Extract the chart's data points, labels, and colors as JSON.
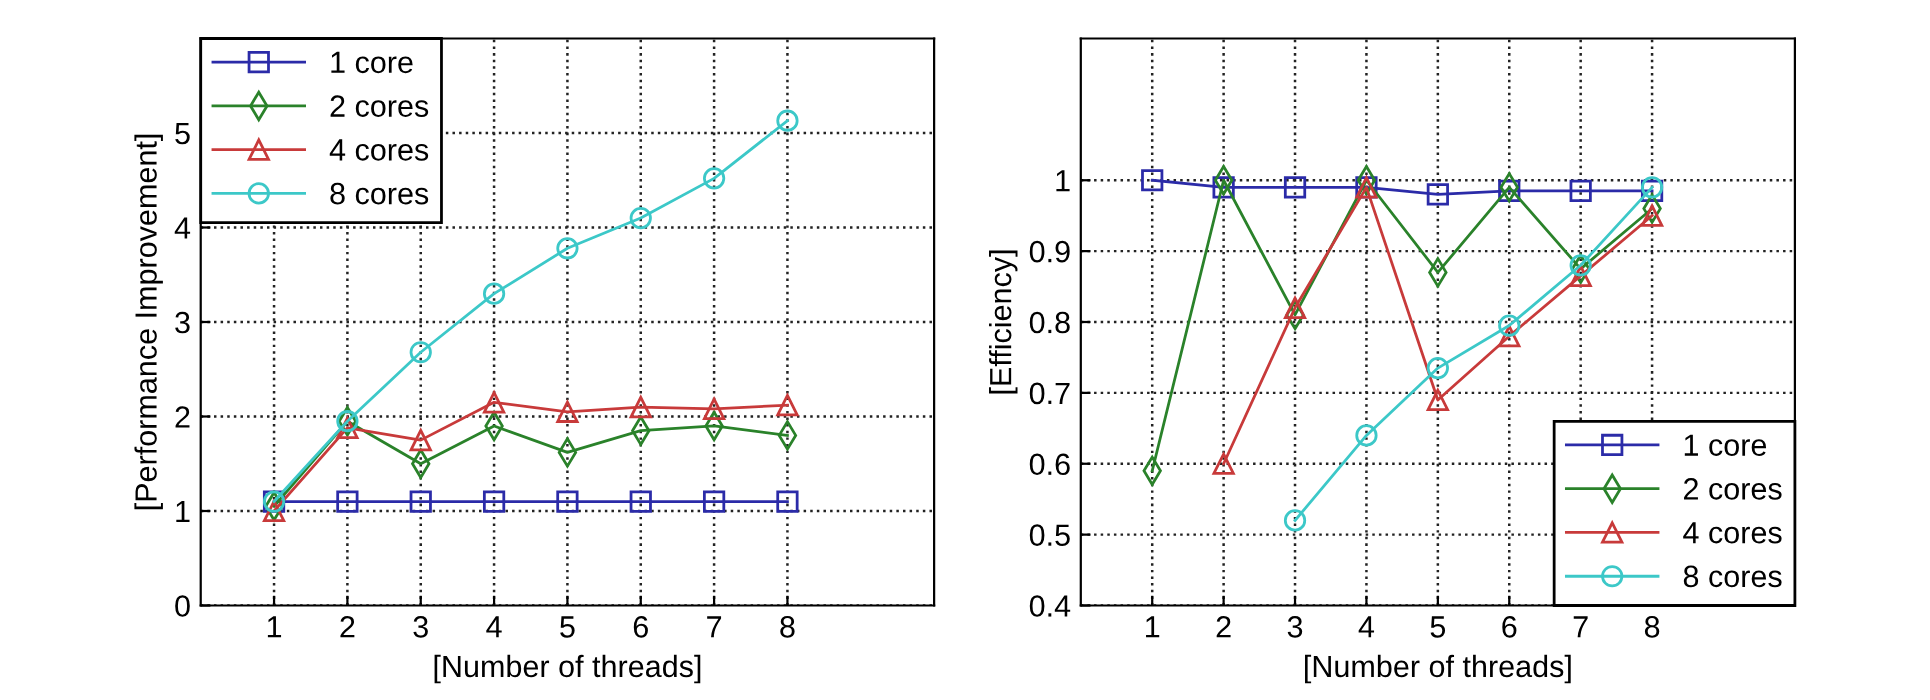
{
  "chart_data": [
    {
      "type": "line",
      "xlabel": "[Number of threads]",
      "ylabel": "[Performance Improvement]",
      "x": [
        1,
        2,
        3,
        4,
        5,
        6,
        7,
        8
      ],
      "xlim": [
        0,
        10
      ],
      "xticks": [
        1,
        2,
        3,
        4,
        5,
        6,
        7,
        8
      ],
      "ylim": [
        0,
        6
      ],
      "yticks": [
        0,
        1,
        2,
        3,
        4,
        5
      ],
      "grid": true,
      "line_style": "solid",
      "legend": "top left",
      "series": [
        {
          "name": "1 core",
          "color": "#2b2ba8",
          "marker": "square",
          "values": [
            1.1,
            1.1,
            1.1,
            1.1,
            1.1,
            1.1,
            1.1,
            1.1
          ]
        },
        {
          "name": "2 cores",
          "color": "#2a822a",
          "marker": "diamond",
          "values": [
            1.05,
            1.95,
            1.5,
            1.9,
            1.62,
            1.85,
            1.9,
            1.8
          ]
        },
        {
          "name": "4 cores",
          "color": "#c83a3a",
          "marker": "triangle",
          "values": [
            1.0,
            1.88,
            1.75,
            2.15,
            2.05,
            2.1,
            2.08,
            2.12
          ]
        },
        {
          "name": "8 cores",
          "color": "#3cc8c8",
          "marker": "circle",
          "values": [
            1.1,
            1.95,
            2.68,
            3.3,
            3.78,
            4.1,
            4.52,
            5.13
          ]
        }
      ]
    },
    {
      "type": "line",
      "xlabel": "[Number of threads]",
      "ylabel": "[Efficiency]",
      "x": [
        1,
        2,
        3,
        4,
        5,
        6,
        7,
        8
      ],
      "xlim": [
        0,
        10
      ],
      "xticks": [
        1,
        2,
        3,
        4,
        5,
        6,
        7,
        8
      ],
      "ylim": [
        0.4,
        1.2
      ],
      "yticks": [
        0.4,
        0.5,
        0.6,
        0.7,
        0.8,
        0.9,
        1
      ],
      "grid": true,
      "line_style": "solid",
      "legend": "bottom right",
      "series": [
        {
          "name": "1 core",
          "color": "#2b2ba8",
          "marker": "square",
          "values": [
            1.0,
            0.99,
            0.99,
            0.99,
            0.98,
            0.985,
            0.985,
            0.985
          ]
        },
        {
          "name": "2 cores",
          "color": "#2a822a",
          "marker": "diamond",
          "values": [
            0.59,
            1.0,
            0.81,
            1.0,
            0.87,
            0.99,
            0.875,
            0.96
          ]
        },
        {
          "name": "4 cores",
          "color": "#c83a3a",
          "marker": "triangle",
          "values": [
            null,
            0.6,
            0.82,
            0.99,
            0.69,
            0.78,
            0.865,
            0.95
          ]
        },
        {
          "name": "8 cores",
          "color": "#3cc8c8",
          "marker": "circle",
          "values": [
            null,
            null,
            0.52,
            0.64,
            0.735,
            0.795,
            0.88,
            0.99
          ]
        }
      ]
    }
  ]
}
